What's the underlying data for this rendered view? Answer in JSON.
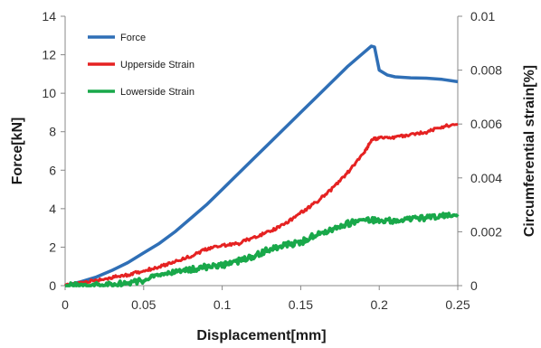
{
  "chart_data": {
    "type": "line",
    "xlabel": "Displacement[mm]",
    "ylabel": "Force[kN]",
    "y2label": "Circumferential strain[%]",
    "xlim": [
      0,
      0.25
    ],
    "ylim": [
      0,
      14
    ],
    "y2lim": [
      0,
      0.01
    ],
    "xticks": [
      "0",
      "0.05",
      "0.1",
      "0.15",
      "0.2",
      "0.25"
    ],
    "yticks": [
      "0",
      "2",
      "4",
      "6",
      "8",
      "10",
      "12",
      "14"
    ],
    "y2ticks": [
      "0",
      "0.002",
      "0.004",
      "0.006",
      "0.008",
      "0.01"
    ],
    "grid": false,
    "legend": "top-left",
    "series": [
      {
        "name": "Force",
        "axis": "left",
        "color": "#2f6fb6",
        "x": [
          0,
          0.01,
          0.02,
          0.03,
          0.04,
          0.05,
          0.06,
          0.07,
          0.08,
          0.09,
          0.1,
          0.11,
          0.12,
          0.13,
          0.14,
          0.15,
          0.16,
          0.17,
          0.18,
          0.19,
          0.195,
          0.197,
          0.2,
          0.205,
          0.21,
          0.22,
          0.23,
          0.24,
          0.25
        ],
        "y": [
          0,
          0.2,
          0.45,
          0.8,
          1.2,
          1.7,
          2.2,
          2.8,
          3.5,
          4.2,
          5.0,
          5.8,
          6.6,
          7.4,
          8.2,
          9.0,
          9.8,
          10.6,
          11.4,
          12.1,
          12.45,
          12.4,
          11.2,
          10.95,
          10.85,
          10.8,
          10.78,
          10.72,
          10.6
        ]
      },
      {
        "name": "Upperside Strain",
        "axis": "right",
        "color": "#e52222",
        "x": [
          0,
          0.01,
          0.02,
          0.03,
          0.04,
          0.05,
          0.06,
          0.07,
          0.08,
          0.09,
          0.1,
          0.11,
          0.12,
          0.13,
          0.14,
          0.15,
          0.16,
          0.17,
          0.18,
          0.19,
          0.195,
          0.2,
          0.21,
          0.22,
          0.23,
          0.24,
          0.25
        ],
        "y": [
          0,
          0.0001,
          0.0002,
          0.0003,
          0.0004,
          0.00055,
          0.0007,
          0.0009,
          0.0011,
          0.00135,
          0.0015,
          0.00155,
          0.0018,
          0.002,
          0.0023,
          0.0027,
          0.0031,
          0.0036,
          0.0042,
          0.0049,
          0.0054,
          0.0055,
          0.0055,
          0.0056,
          0.0057,
          0.0059,
          0.006
        ]
      },
      {
        "name": "Lowerside Strain",
        "axis": "right",
        "color": "#19a84a",
        "x": [
          0,
          0.01,
          0.02,
          0.03,
          0.04,
          0.05,
          0.06,
          0.07,
          0.08,
          0.09,
          0.1,
          0.11,
          0.12,
          0.13,
          0.14,
          0.15,
          0.16,
          0.17,
          0.18,
          0.19,
          0.2,
          0.21,
          0.22,
          0.23,
          0.24,
          0.25
        ],
        "y": [
          0,
          0,
          0,
          5e-05,
          0.0001,
          0.0002,
          0.0004,
          0.0005,
          0.0006,
          0.0007,
          0.00075,
          0.0009,
          0.0011,
          0.00135,
          0.0015,
          0.0016,
          0.0019,
          0.0021,
          0.0023,
          0.00245,
          0.0024,
          0.0024,
          0.0025,
          0.0025,
          0.0026,
          0.00265
        ]
      }
    ]
  }
}
